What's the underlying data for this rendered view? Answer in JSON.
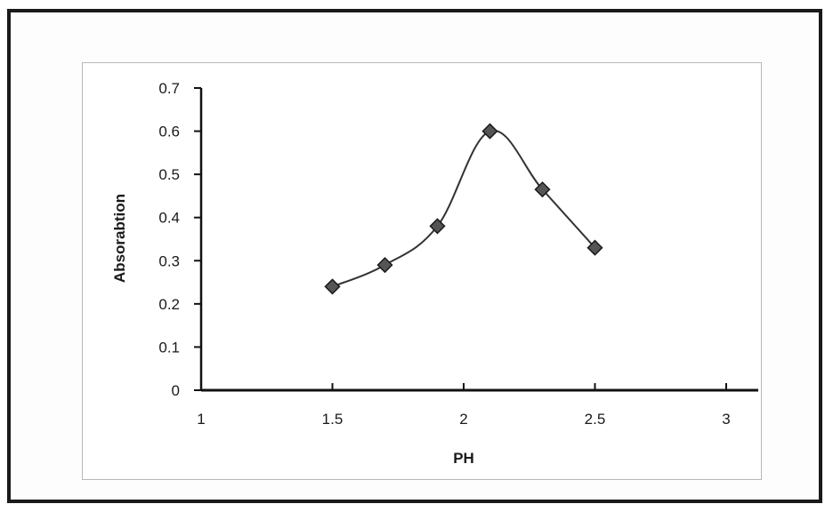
{
  "chart_data": {
    "type": "line",
    "title": "",
    "xlabel": "PH",
    "ylabel": "Absorabtion",
    "xlim": [
      1,
      3
    ],
    "ylim": [
      0,
      0.7
    ],
    "x_ticks": [
      "1",
      "1.5",
      "2",
      "2.5",
      "3"
    ],
    "y_ticks": [
      "0",
      "0.1",
      "0.2",
      "0.3",
      "0.4",
      "0.5",
      "0.6",
      "0.7"
    ],
    "grid": false,
    "legend": "none",
    "marker": "diamond",
    "smooth": true,
    "series": [
      {
        "x": [
          1.5,
          1.7,
          1.9,
          2.1,
          2.3,
          2.5
        ],
        "values": [
          0.24,
          0.29,
          0.38,
          0.6,
          0.465,
          0.33
        ]
      }
    ],
    "colors": {
      "line": "#333333",
      "marker": "#555555",
      "axis": "#111111"
    }
  }
}
